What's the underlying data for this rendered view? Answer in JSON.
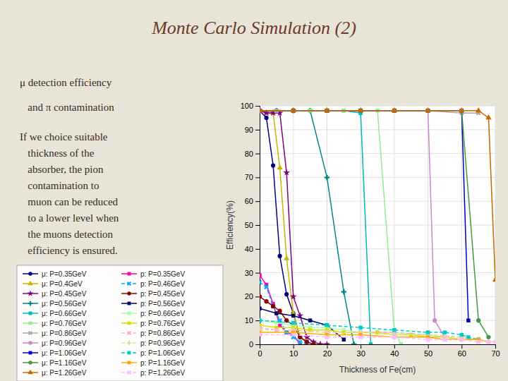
{
  "chart_data": {
    "type": "line",
    "title": "Monte Carlo Simulation (2)",
    "annotations": [
      "μ detection efficiency",
      "   and π contamination",
      "If we choice suitable",
      "   thickness of the",
      "   absorber, the pion",
      "   contamination to",
      "   muon can be reduced",
      "   to a lower level when",
      "   the muons detection",
      "   efficiency is ensured."
    ],
    "xlabel": "Thickness of Fe(cm)",
    "ylabel": "Efficiency(%)",
    "xlim": [
      0,
      70
    ],
    "ylim": [
      0,
      100
    ],
    "xticks": [
      0,
      10,
      20,
      30,
      40,
      50,
      60,
      70
    ],
    "yticks": [
      0,
      10,
      20,
      30,
      40,
      50,
      60,
      70,
      80,
      90,
      100
    ],
    "grid": true,
    "series": [
      {
        "name": "μ: P=0.35GeV",
        "color": "#000080",
        "marker": "circle",
        "line_style": "solid",
        "x": [
          0,
          2,
          4,
          6,
          8,
          10,
          12,
          14,
          16
        ],
        "values": [
          98,
          95,
          75,
          37,
          21,
          13,
          3,
          1,
          0
        ]
      },
      {
        "name": "μ: P=0.4GeV",
        "color": "#c8b400",
        "marker": "triangle",
        "line_style": "solid",
        "x": [
          0,
          2,
          4,
          6,
          8,
          10,
          12,
          14,
          16,
          18
        ],
        "values": [
          98,
          97,
          97,
          74,
          36,
          13,
          3,
          1,
          0,
          0
        ]
      },
      {
        "name": "μ: P=0.45GeV",
        "color": "#800080",
        "marker": "star",
        "line_style": "solid",
        "x": [
          0,
          2,
          4,
          6,
          8,
          10,
          12,
          14,
          16,
          18,
          20
        ],
        "values": [
          98,
          97,
          97,
          97,
          72,
          20,
          12,
          3,
          1,
          0,
          0
        ]
      },
      {
        "name": "μ: P=0.56GeV",
        "color": "#008888",
        "marker": "plus",
        "line_style": "solid",
        "x": [
          0,
          5,
          10,
          15,
          20,
          25,
          28
        ],
        "values": [
          98,
          98,
          98,
          98,
          70,
          22,
          0
        ]
      },
      {
        "name": "μ: P=0.66GeV",
        "color": "#00b8b8",
        "marker": "square",
        "line_style": "solid",
        "x": [
          0,
          5,
          10,
          15,
          20,
          25,
          30,
          33
        ],
        "values": [
          98,
          98,
          98,
          98,
          98,
          98,
          97,
          0
        ]
      },
      {
        "name": "μ: P=0.76GeV",
        "color": "#90ee90",
        "marker": "square",
        "line_style": "solid",
        "x": [
          0,
          5,
          10,
          15,
          20,
          25,
          30,
          35,
          40,
          42
        ],
        "values": [
          98,
          98,
          98,
          98,
          98,
          98,
          98,
          98,
          6,
          0
        ]
      },
      {
        "name": "μ: P=0.86GeV",
        "color": "#aaaaaa",
        "marker": "cross",
        "line_style": "solid",
        "x": [
          0,
          5,
          10,
          20,
          30,
          40,
          50,
          60,
          65
        ],
        "values": [
          98,
          98,
          98,
          98,
          98,
          98,
          98,
          97,
          97
        ]
      },
      {
        "name": "μ: P=0.96GeV",
        "color": "#cc88cc",
        "marker": "circle",
        "line_style": "solid",
        "x": [
          0,
          10,
          20,
          30,
          40,
          50,
          52,
          55
        ],
        "values": [
          98,
          98,
          98,
          98,
          98,
          98,
          10,
          3
        ]
      },
      {
        "name": "μ: P=1.06GeV",
        "color": "#0000cc",
        "marker": "square",
        "line_style": "solid",
        "x": [
          0,
          10,
          20,
          30,
          40,
          50,
          60,
          62
        ],
        "values": [
          98,
          98,
          98,
          98,
          98,
          98,
          98,
          10
        ]
      },
      {
        "name": "μ: P=1.16GeV",
        "color": "#449944",
        "marker": "circle",
        "line_style": "solid",
        "x": [
          0,
          10,
          20,
          30,
          40,
          50,
          60,
          65,
          68
        ],
        "values": [
          98,
          98,
          98,
          98,
          98,
          98,
          98,
          10,
          3
        ]
      },
      {
        "name": "μ: P=1.26GeV",
        "color": "#cc6600",
        "marker": "triangle",
        "line_style": "solid",
        "x": [
          0,
          10,
          20,
          30,
          40,
          50,
          60,
          65,
          68,
          70
        ],
        "values": [
          98,
          98,
          98,
          98,
          98,
          98,
          98,
          98,
          95,
          27
        ]
      },
      {
        "name": "p: P=0.35GeV",
        "color": "#ff00aa",
        "marker": "square",
        "line_style": "solid",
        "x": [
          0,
          2,
          4,
          6,
          8,
          10,
          12
        ],
        "values": [
          29,
          25,
          17,
          8,
          5,
          4,
          0
        ]
      },
      {
        "name": "p: P=0.46GeV",
        "color": "#00aaff",
        "marker": "cross",
        "line_style": "dashed",
        "x": [
          0,
          2,
          4,
          6,
          8,
          10,
          12,
          14
        ],
        "values": [
          26,
          24,
          16,
          10,
          5,
          3,
          1,
          0
        ]
      },
      {
        "name": "p: P=0.45GeV",
        "color": "#880000",
        "marker": "circle",
        "line_style": "solid",
        "x": [
          0,
          2,
          4,
          6,
          8,
          10,
          12,
          14,
          16
        ],
        "values": [
          20,
          18,
          16,
          14,
          10,
          8,
          3,
          1,
          0
        ]
      },
      {
        "name": "p: P=0.56GeV",
        "color": "#000066",
        "marker": "square",
        "line_style": "solid",
        "x": [
          0,
          5,
          10,
          15,
          20,
          25
        ],
        "values": [
          15,
          13,
          12,
          10,
          8,
          2
        ]
      },
      {
        "name": "p: P=0.66GeV",
        "color": "#aaffaa",
        "marker": "square",
        "line_style": "solid",
        "x": [
          0,
          5,
          10,
          15,
          20,
          25,
          30,
          35,
          40,
          45,
          50,
          55,
          60
        ],
        "values": [
          10,
          9,
          8,
          7,
          7,
          6,
          5,
          5,
          5,
          4,
          4,
          3,
          2
        ]
      },
      {
        "name": "p: P=0.76GeV",
        "color": "#dddd00",
        "marker": "square",
        "line_style": "solid",
        "x": [
          0,
          5,
          10,
          15,
          20,
          25,
          30,
          35,
          40,
          45,
          50,
          55,
          60,
          65
        ],
        "values": [
          8,
          7,
          7,
          6,
          6,
          5,
          5,
          5,
          4,
          4,
          3,
          3,
          2,
          2
        ]
      },
      {
        "name": "p: P=0.86GeV",
        "color": "#ffaacc",
        "marker": "cross",
        "line_style": "dashed",
        "x": [
          0,
          5,
          10,
          20,
          30,
          40,
          50,
          60,
          65
        ],
        "values": [
          7,
          6,
          6,
          5,
          5,
          5,
          4,
          3,
          2
        ]
      },
      {
        "name": "p: P=0.96GeV",
        "color": "#ddddaa",
        "marker": "plus",
        "line_style": "dashed",
        "x": [
          0,
          10,
          20,
          30,
          40,
          50,
          55,
          60,
          65
        ],
        "values": [
          6,
          6,
          5,
          5,
          4,
          4,
          3,
          3,
          2
        ]
      },
      {
        "name": "p: P=1.06GeV",
        "color": "#00cccc",
        "marker": "square",
        "line_style": "dashed",
        "x": [
          0,
          10,
          20,
          30,
          40,
          50,
          55,
          60,
          62,
          65
        ],
        "values": [
          10,
          9,
          8,
          7,
          6,
          5,
          5,
          4,
          3,
          2
        ]
      },
      {
        "name": "p: P=1.16GeV",
        "color": "#ffaa00",
        "marker": "square",
        "line_style": "solid",
        "x": [
          0,
          10,
          20,
          30,
          40,
          50,
          55,
          60,
          65,
          68
        ],
        "values": [
          5,
          5,
          4,
          4,
          3,
          3,
          2,
          2,
          2,
          1
        ]
      },
      {
        "name": "p: P=1.26GeV",
        "color": "#ffbbff",
        "marker": "cross",
        "line_style": "dashed",
        "x": [
          0,
          10,
          20,
          30,
          40,
          50,
          55,
          60,
          65,
          68,
          70
        ],
        "values": [
          4,
          4,
          3,
          3,
          3,
          2,
          2,
          2,
          1,
          1,
          1
        ]
      }
    ]
  }
}
